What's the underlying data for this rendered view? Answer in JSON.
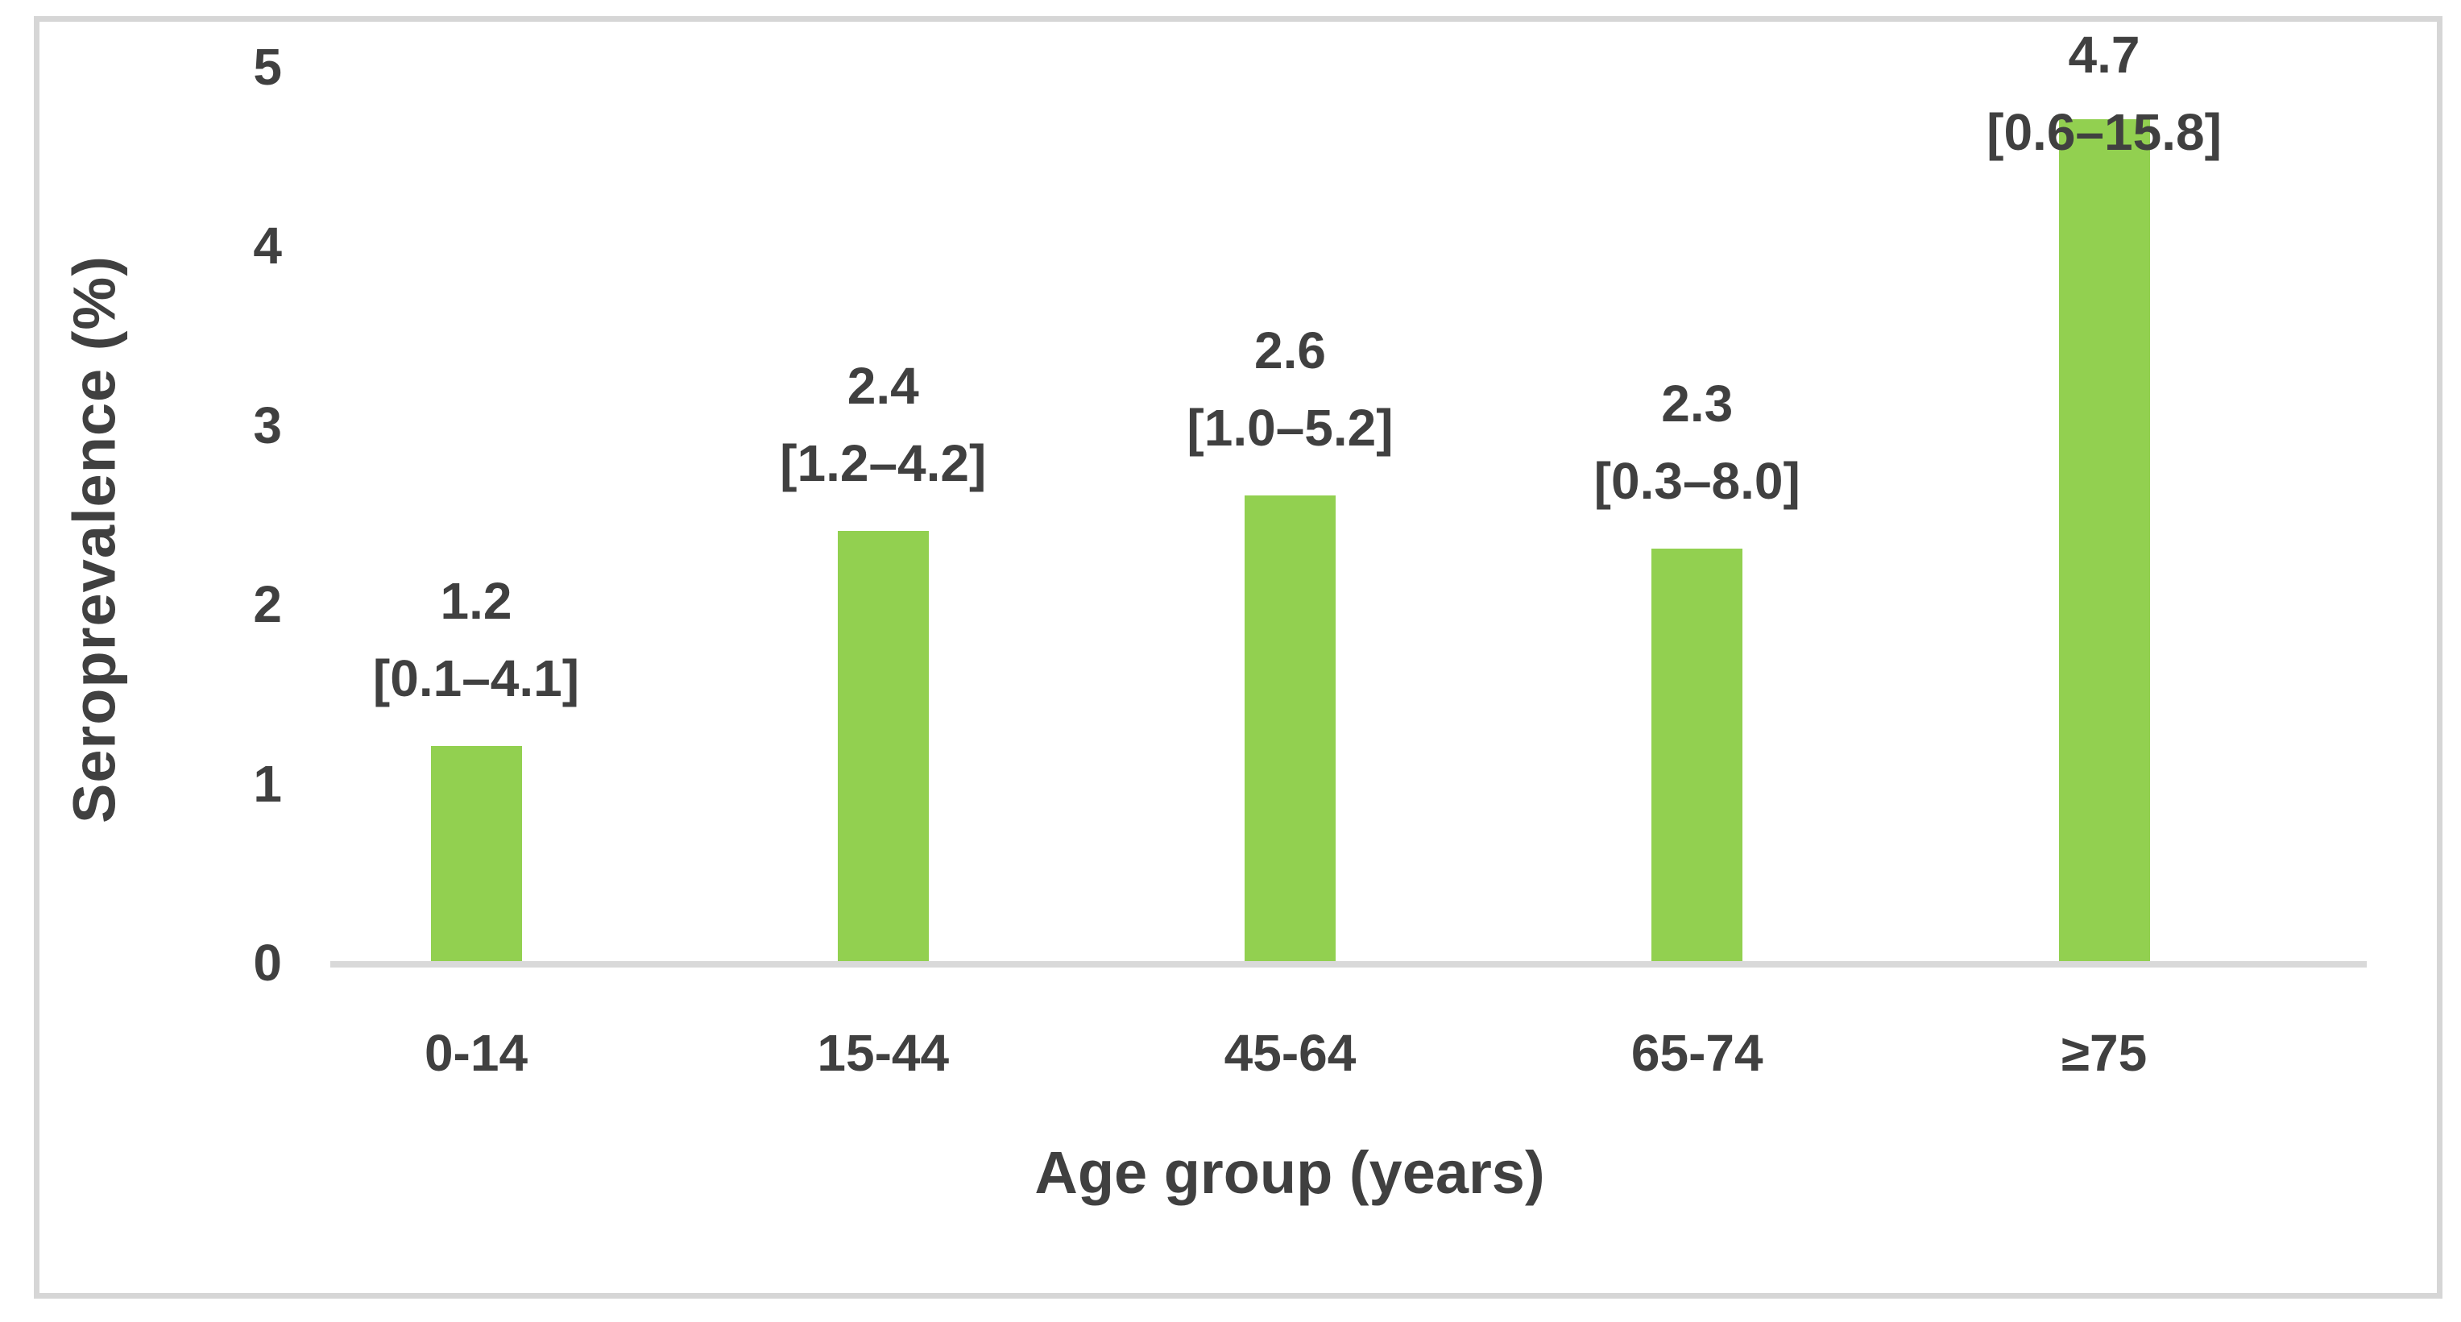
{
  "chart_data": {
    "type": "bar",
    "title": "",
    "ylabel": "Seroprevalence (%)",
    "xlabel": "Age group (years)",
    "categories": [
      "0-14",
      "15-44",
      "45-64",
      "65-74",
      "≥75"
    ],
    "values": [
      1.2,
      2.4,
      2.6,
      2.3,
      4.7
    ],
    "value_labels": [
      "1.2",
      "2.4",
      "2.6",
      "2.3",
      "4.7"
    ],
    "ci_labels": [
      "[0.1–4.1]",
      "[1.2–4.2]",
      "[1.0–5.2]",
      "[0.3–8.0]",
      "[0.6–15.8]"
    ],
    "ylim": [
      0,
      5
    ],
    "yticks": [
      0,
      1,
      2,
      3,
      4,
      5
    ],
    "grid": false,
    "legend_position": "none",
    "colors": {
      "bar": "#92D050",
      "axis_line": "#D9D9D9",
      "text": "#404040",
      "frame_border": "#D6D6D6",
      "background": "#FFFFFF"
    }
  }
}
